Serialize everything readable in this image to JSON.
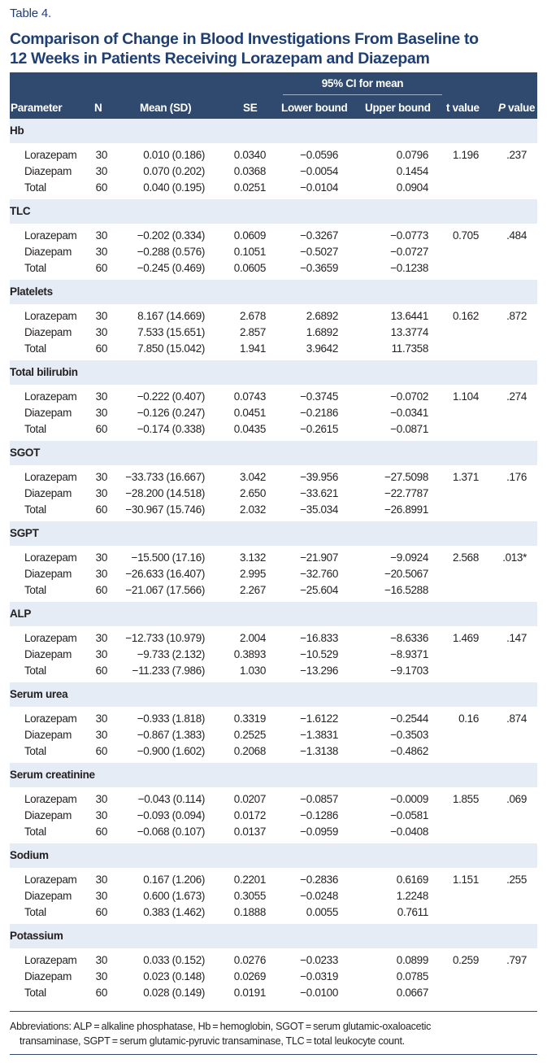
{
  "table_label": "Table 4.",
  "title_lines": [
    "Comparison of Change in Blood Investigations From Baseline to",
    "12 Weeks in Patients Receiving Lorazepam and Diazepam"
  ],
  "header": {
    "ci_span": "95% CI for mean",
    "columns": [
      "Parameter",
      "N",
      "Mean (SD)",
      "SE",
      "Lower bound",
      "Upper bound",
      "t value",
      "value"
    ],
    "p_letter": "P"
  },
  "sections": [
    {
      "name": "Hb",
      "t": "1.196",
      "p": ".237",
      "rows": [
        {
          "group": "Lorazepam",
          "n": "30",
          "mean": "0.010 (0.186)",
          "se": "0.0340",
          "lower": "−0.0596",
          "upper": "0.0796"
        },
        {
          "group": "Diazepam",
          "n": "30",
          "mean": "0.070 (0.202)",
          "se": "0.0368",
          "lower": "−0.0054",
          "upper": "0.1454"
        },
        {
          "group": "Total",
          "n": "60",
          "mean": "0.040 (0.195)",
          "se": "0.0251",
          "lower": "−0.0104",
          "upper": "0.0904"
        }
      ]
    },
    {
      "name": "TLC",
      "t": "0.705",
      "p": ".484",
      "rows": [
        {
          "group": "Lorazepam",
          "n": "30",
          "mean": "−0.202 (0.334)",
          "se": "0.0609",
          "lower": "−0.3267",
          "upper": "−0.0773"
        },
        {
          "group": "Diazepam",
          "n": "30",
          "mean": "−0.288 (0.576)",
          "se": "0.1051",
          "lower": "−0.5027",
          "upper": "−0.0727"
        },
        {
          "group": "Total",
          "n": "60",
          "mean": "−0.245 (0.469)",
          "se": "0.0605",
          "lower": "−0.3659",
          "upper": "−0.1238"
        }
      ]
    },
    {
      "name": "Platelets",
      "t": "0.162",
      "p": ".872",
      "rows": [
        {
          "group": "Lorazepam",
          "n": "30",
          "mean": "8.167 (14.669)",
          "se": "2.678",
          "lower": "2.6892",
          "upper": "13.6441"
        },
        {
          "group": "Diazepam",
          "n": "30",
          "mean": "7.533 (15.651)",
          "se": "2.857",
          "lower": "1.6892",
          "upper": "13.3774"
        },
        {
          "group": "Total",
          "n": "60",
          "mean": "7.850 (15.042)",
          "se": "1.941",
          "lower": "3.9642",
          "upper": "11.7358"
        }
      ]
    },
    {
      "name": "Total bilirubin",
      "t": "1.104",
      "p": ".274",
      "rows": [
        {
          "group": "Lorazepam",
          "n": "30",
          "mean": "−0.222 (0.407)",
          "se": "0.0743",
          "lower": "−0.3745",
          "upper": "−0.0702"
        },
        {
          "group": "Diazepam",
          "n": "30",
          "mean": "−0.126 (0.247)",
          "se": "0.0451",
          "lower": "−0.2186",
          "upper": "−0.0341"
        },
        {
          "group": "Total",
          "n": "60",
          "mean": "−0.174 (0.338)",
          "se": "0.0435",
          "lower": "−0.2615",
          "upper": "−0.0871"
        }
      ]
    },
    {
      "name": "SGOT",
      "t": "1.371",
      "p": ".176",
      "rows": [
        {
          "group": "Lorazepam",
          "n": "30",
          "mean": "−33.733 (16.667)",
          "se": "3.042",
          "lower": "−39.956",
          "upper": "−27.5098"
        },
        {
          "group": "Diazepam",
          "n": "30",
          "mean": "−28.200 (14.518)",
          "se": "2.650",
          "lower": "−33.621",
          "upper": "−22.7787"
        },
        {
          "group": "Total",
          "n": "60",
          "mean": "−30.967 (15.746)",
          "se": "2.032",
          "lower": "−35.034",
          "upper": "−26.8991"
        }
      ]
    },
    {
      "name": "SGPT",
      "t": "2.568",
      "p": ".013*",
      "rows": [
        {
          "group": "Lorazepam",
          "n": "30",
          "mean": "−15.500 (17.16)",
          "se": "3.132",
          "lower": "−21.907",
          "upper": "−9.0924"
        },
        {
          "group": "Diazepam",
          "n": "30",
          "mean": "−26.633 (16.407)",
          "se": "2.995",
          "lower": "−32.760",
          "upper": "−20.5067"
        },
        {
          "group": "Total",
          "n": "60",
          "mean": "−21.067 (17.566)",
          "se": "2.267",
          "lower": "−25.604",
          "upper": "−16.5288"
        }
      ]
    },
    {
      "name": "ALP",
      "t": "1.469",
      "p": ".147",
      "rows": [
        {
          "group": "Lorazepam",
          "n": "30",
          "mean": "−12.733 (10.979)",
          "se": "2.004",
          "lower": "−16.833",
          "upper": "−8.6336"
        },
        {
          "group": "Diazepam",
          "n": "30",
          "mean": "−9.733 (2.132)",
          "se": "0.3893",
          "lower": "−10.529",
          "upper": "−8.9371"
        },
        {
          "group": "Total",
          "n": "60",
          "mean": "−11.233 (7.986)",
          "se": "1.030",
          "lower": "−13.296",
          "upper": "−9.1703"
        }
      ]
    },
    {
      "name": "Serum urea",
      "t": "0.16",
      "p": ".874",
      "rows": [
        {
          "group": "Lorazepam",
          "n": "30",
          "mean": "−0.933 (1.818)",
          "se": "0.3319",
          "lower": "−1.6122",
          "upper": "−0.2544"
        },
        {
          "group": "Diazepam",
          "n": "30",
          "mean": "−0.867 (1.383)",
          "se": "0.2525",
          "lower": "−1.3831",
          "upper": "−0.3503"
        },
        {
          "group": "Total",
          "n": "60",
          "mean": "−0.900 (1.602)",
          "se": "0.2068",
          "lower": "−1.3138",
          "upper": "−0.4862"
        }
      ]
    },
    {
      "name": "Serum creatinine",
      "t": "1.855",
      "p": ".069",
      "rows": [
        {
          "group": "Lorazepam",
          "n": "30",
          "mean": "−0.043 (0.114)",
          "se": "0.0207",
          "lower": "−0.0857",
          "upper": "−0.0009"
        },
        {
          "group": "Diazepam",
          "n": "30",
          "mean": "−0.093 (0.094)",
          "se": "0.0172",
          "lower": "−0.1286",
          "upper": "−0.0581"
        },
        {
          "group": "Total",
          "n": "60",
          "mean": "−0.068 (0.107)",
          "se": "0.0137",
          "lower": "−0.0959",
          "upper": "−0.0408"
        }
      ]
    },
    {
      "name": "Sodium",
      "t": "1.151",
      "p": ".255",
      "rows": [
        {
          "group": "Lorazepam",
          "n": "30",
          "mean": "0.167 (1.206)",
          "se": "0.2201",
          "lower": "−0.2836",
          "upper": "0.6169"
        },
        {
          "group": "Diazepam",
          "n": "30",
          "mean": "0.600 (1.673)",
          "se": "0.3055",
          "lower": "−0.0248",
          "upper": "1.2248"
        },
        {
          "group": "Total",
          "n": "60",
          "mean": "0.383 (1.462)",
          "se": "0.1888",
          "lower": "0.0055",
          "upper": "0.7611"
        }
      ]
    },
    {
      "name": "Potassium",
      "t": "0.259",
      "p": ".797",
      "rows": [
        {
          "group": "Lorazepam",
          "n": "30",
          "mean": "0.033 (0.152)",
          "se": "0.0276",
          "lower": "−0.0233",
          "upper": "0.0899"
        },
        {
          "group": "Diazepam",
          "n": "30",
          "mean": "0.023 (0.148)",
          "se": "0.0269",
          "lower": "−0.0319",
          "upper": "0.0785"
        },
        {
          "group": "Total",
          "n": "60",
          "mean": "0.028 (0.149)",
          "se": "0.0191",
          "lower": "−0.0100",
          "upper": "0.0667"
        }
      ]
    }
  ],
  "footnote_lines": [
    "Abbreviations: ALP = alkaline phosphatase, Hb = hemoglobin, SGOT = serum glutamic-oxaloacetic",
    "transaminase, SGPT = serum glutamic-pyruvic transaminase, TLC = total leukocyte count."
  ],
  "colors": {
    "header_bg": "#2f4a6e",
    "title": "#1f3f73",
    "section_bg": "#e6ecf5"
  }
}
